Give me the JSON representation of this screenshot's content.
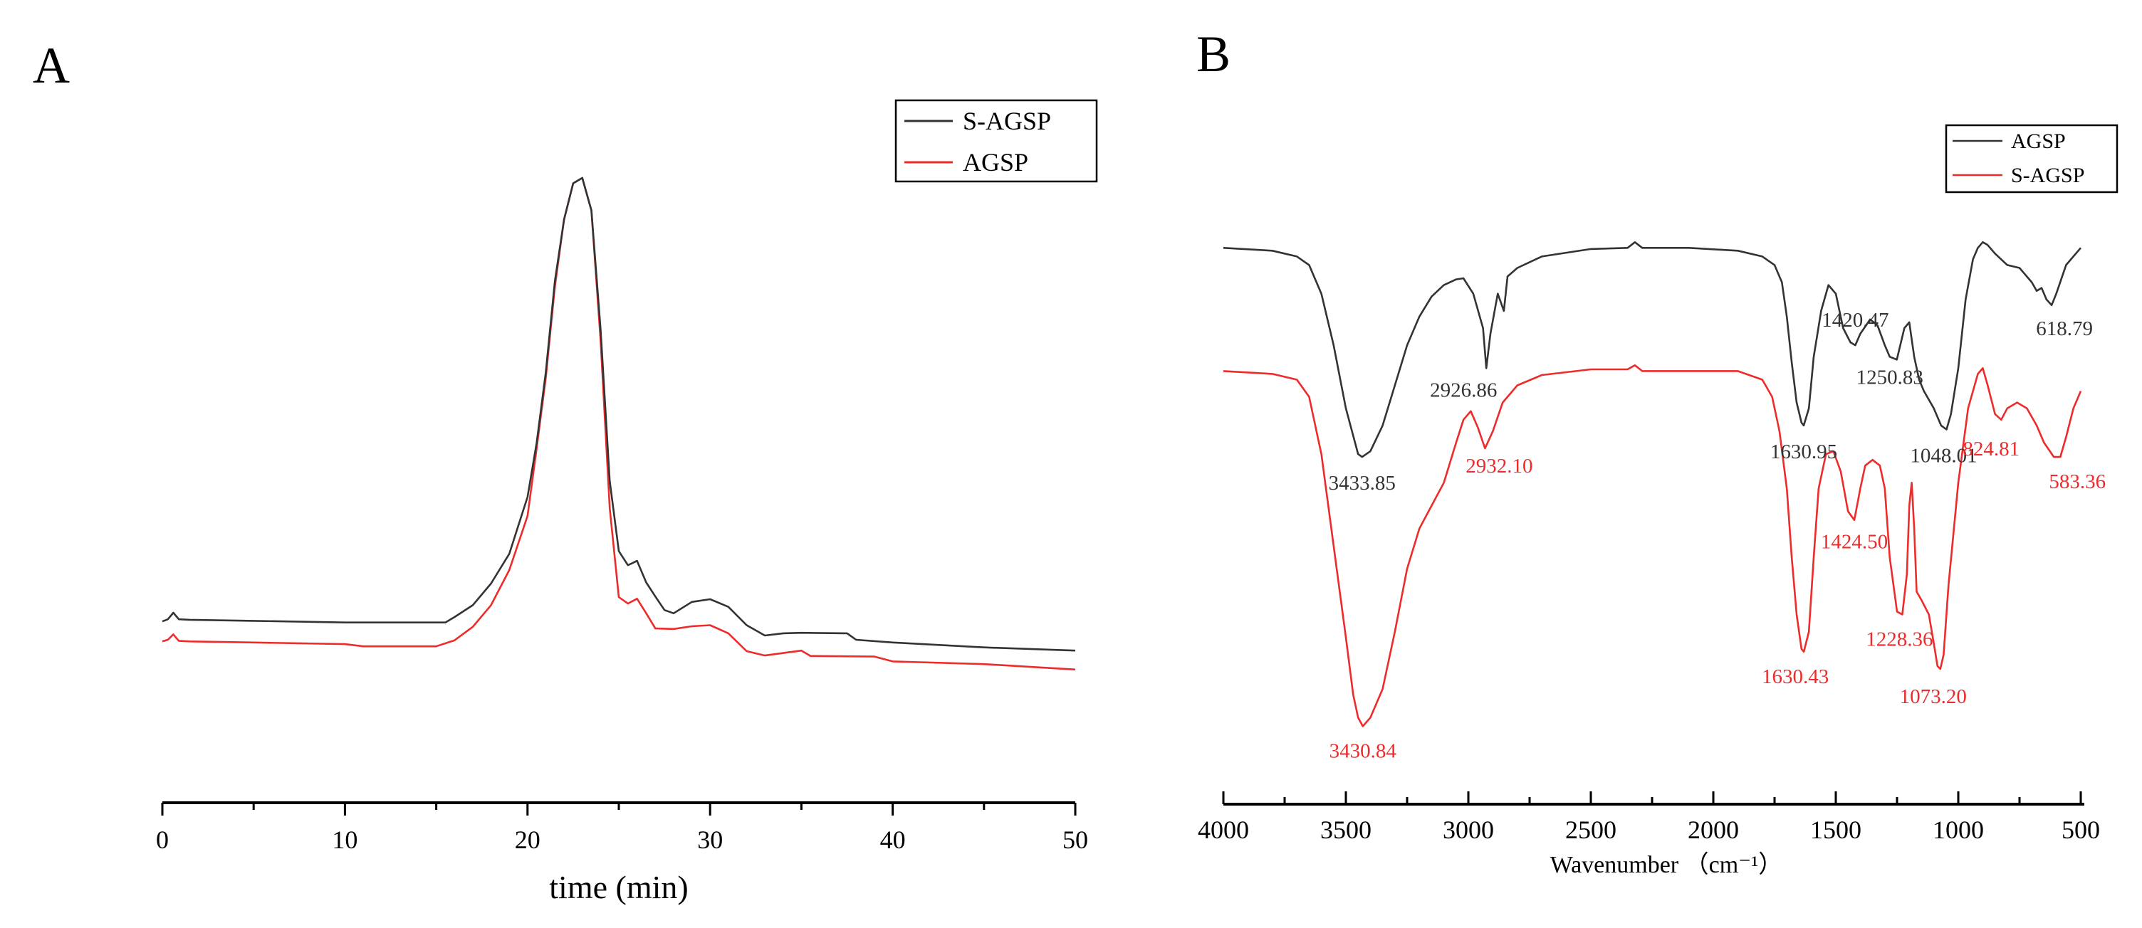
{
  "colors": {
    "black_series": "#333333",
    "red_series": "#ee2b2b",
    "axis": "#000000"
  },
  "chart_data": [
    {
      "panel": "A",
      "type": "line",
      "title": "",
      "xlabel": "time (min)",
      "ylabel": "",
      "xlim": [
        0,
        50
      ],
      "xticks": [
        0,
        10,
        20,
        30,
        40,
        50
      ],
      "xtick_labels": [
        "0",
        "10",
        "20",
        "30",
        "40",
        "50"
      ],
      "ylim": [
        0,
        100
      ],
      "legend": {
        "position": "top-right",
        "entries": [
          "S-AGSP",
          "AGSP"
        ]
      },
      "series": [
        {
          "name": "S-AGSP",
          "color": "#333333",
          "x": [
            0,
            0.3,
            0.6,
            0.9,
            1.5,
            5,
            10,
            15.5,
            16,
            17,
            18,
            19,
            20,
            20.5,
            21,
            21.5,
            22,
            22.5,
            23,
            23.5,
            24,
            24.5,
            25,
            25.5,
            26,
            26.5,
            27,
            27.5,
            28,
            29,
            30,
            31,
            32,
            33,
            34,
            35,
            37.5,
            38,
            40,
            45,
            50
          ],
          "y": [
            18,
            18.4,
            19.6,
            18.4,
            18.3,
            18.1,
            17.8,
            17.8,
            18.8,
            21,
            25,
            30.5,
            41,
            51,
            64,
            81,
            92.3,
            99,
            100,
            94,
            72,
            44,
            31,
            28.4,
            29.2,
            25.2,
            22.6,
            20.1,
            19.5,
            21.6,
            22.1,
            20.7,
            17.3,
            15.4,
            15.8,
            15.9,
            15.8,
            14.6,
            14.1,
            13.2,
            12.6
          ]
        },
        {
          "name": "AGSP",
          "color": "#ee2b2b",
          "x": [
            0,
            0.3,
            0.6,
            0.9,
            1.5,
            5,
            10,
            11,
            15,
            16,
            17,
            18,
            19,
            20,
            20.5,
            21,
            21.5,
            22,
            22.5,
            23,
            23.5,
            24,
            24.5,
            25,
            25.5,
            26,
            26.5,
            27,
            28,
            29,
            30,
            31,
            32,
            33,
            35,
            35.5,
            39,
            40,
            45,
            50
          ],
          "y": [
            14.3,
            14.6,
            15.6,
            14.4,
            14.3,
            14.1,
            13.8,
            13.4,
            13.4,
            14.5,
            17,
            21,
            27.5,
            37.5,
            50,
            63,
            80,
            92.3,
            99,
            100,
            94,
            70,
            39,
            22.5,
            21.3,
            22.2,
            19.5,
            16.7,
            16.6,
            17.1,
            17.3,
            15.8,
            12.5,
            11.7,
            12.6,
            11.6,
            11.5,
            10.6,
            10.1,
            9.1
          ]
        }
      ]
    },
    {
      "panel": "B",
      "type": "line",
      "title": "",
      "xlabel": "Wavenumber （cm⁻¹）",
      "ylabel": "",
      "xlim": [
        4000,
        500
      ],
      "xticks": [
        4000,
        3500,
        3000,
        2500,
        2000,
        1500,
        1000,
        500
      ],
      "xtick_labels": [
        "4000",
        "3500",
        "3000",
        "2500",
        "2000",
        "1500",
        "1000",
        "500"
      ],
      "ylim": [
        0,
        100
      ],
      "legend": {
        "position": "top-right",
        "entries": [
          "AGSP",
          "S-AGSP"
        ]
      },
      "series": [
        {
          "name": "AGSP",
          "color": "#333333",
          "x": [
            4000,
            3800,
            3700,
            3650,
            3600,
            3550,
            3500,
            3450,
            3433.85,
            3400,
            3350,
            3300,
            3250,
            3200,
            3150,
            3100,
            3050,
            3020,
            2980,
            2940,
            2926.86,
            2910,
            2880,
            2855,
            2840,
            2800,
            2700,
            2500,
            2350,
            2320,
            2290,
            2100,
            1900,
            1800,
            1750,
            1720,
            1700,
            1680,
            1660,
            1640,
            1630.95,
            1610,
            1590,
            1560,
            1530,
            1500,
            1470,
            1440,
            1420.47,
            1400,
            1360,
            1330,
            1300,
            1280,
            1250.83,
            1220,
            1200,
            1180,
            1160,
            1140,
            1100,
            1070,
            1048.01,
            1030,
            1000,
            970,
            940,
            920,
            900,
            880,
            850,
            800,
            750,
            700,
            680,
            660,
            640,
            618.79,
            600,
            560,
            520,
            500
          ],
          "y": [
            94,
            93.5,
            92.5,
            91,
            86,
            77,
            66,
            58,
            57.5,
            58.5,
            63,
            70,
            77,
            82,
            85.5,
            87.5,
            88.5,
            88.7,
            86,
            80,
            73,
            79,
            86,
            83,
            89,
            90.5,
            92.5,
            93.8,
            94,
            95,
            94,
            94,
            93.5,
            92.5,
            91,
            88,
            82,
            74,
            67,
            63.5,
            63,
            66,
            75,
            83,
            87.5,
            86,
            80,
            77.5,
            77,
            79,
            81.5,
            80.5,
            77,
            75,
            74.5,
            80,
            81,
            75,
            71,
            69,
            66,
            63,
            62.3,
            65,
            73,
            85,
            92,
            94,
            95,
            94.5,
            93,
            91,
            90.5,
            88,
            86.5,
            87,
            85,
            84,
            86,
            91,
            93,
            94
          ]
        },
        {
          "name": "S-AGSP",
          "color": "#ee2b2b",
          "x": [
            4000,
            3800,
            3700,
            3650,
            3600,
            3550,
            3500,
            3470,
            3450,
            3430.84,
            3400,
            3350,
            3300,
            3250,
            3200,
            3150,
            3100,
            3050,
            3020,
            2990,
            2960,
            2932.1,
            2900,
            2860,
            2800,
            2700,
            2500,
            2350,
            2320,
            2290,
            2100,
            1900,
            1800,
            1760,
            1730,
            1700,
            1680,
            1660,
            1640,
            1630.43,
            1610,
            1590,
            1570,
            1540,
            1510,
            1480,
            1450,
            1424.5,
            1400,
            1380,
            1350,
            1320,
            1300,
            1280,
            1250,
            1228.36,
            1210,
            1200,
            1190,
            1180,
            1170,
            1150,
            1120,
            1100,
            1085,
            1073.2,
            1060,
            1040,
            1000,
            960,
            920,
            900,
            880,
            850,
            824.81,
            800,
            760,
            720,
            680,
            650,
            610,
            583.36,
            560,
            530,
            500
          ],
          "y": [
            72.5,
            72,
            71,
            68,
            58,
            42,
            26,
            16,
            12,
            10.5,
            12,
            17,
            27,
            38,
            45,
            49,
            53,
            60,
            64,
            65.5,
            62.5,
            59,
            62,
            67,
            70,
            71.8,
            72.8,
            72.8,
            73.5,
            72.5,
            72.5,
            72.5,
            71,
            68,
            62,
            52,
            40,
            30,
            24,
            23.5,
            27,
            40,
            52,
            58,
            58.5,
            55,
            48,
            46.5,
            52,
            56,
            57,
            56,
            52,
            40,
            30.5,
            30,
            37,
            49,
            53,
            45,
            34,
            32.5,
            30,
            25,
            21,
            20.5,
            23,
            35,
            53,
            66,
            72,
            73,
            70,
            65,
            64,
            66,
            67,
            66,
            63,
            60,
            57.5,
            57.5,
            61,
            66,
            69
          ]
        }
      ],
      "annotations": [
        {
          "text": "2926.86",
          "series": "AGSP"
        },
        {
          "text": "3433.85",
          "series": "AGSP"
        },
        {
          "text": "1630.95",
          "series": "AGSP"
        },
        {
          "text": "1420.47",
          "series": "AGSP"
        },
        {
          "text": "1250.83",
          "series": "AGSP"
        },
        {
          "text": "1048.01",
          "series": "AGSP"
        },
        {
          "text": "618.79",
          "series": "AGSP"
        },
        {
          "text": "2932.10",
          "series": "S-AGSP"
        },
        {
          "text": "3430.84",
          "series": "S-AGSP"
        },
        {
          "text": "1630.43",
          "series": "S-AGSP"
        },
        {
          "text": "1424.50",
          "series": "S-AGSP"
        },
        {
          "text": "1228.36",
          "series": "S-AGSP"
        },
        {
          "text": "1073.20",
          "series": "S-AGSP"
        },
        {
          "text": "824.81",
          "series": "S-AGSP"
        },
        {
          "text": "583.36",
          "series": "S-AGSP"
        }
      ]
    }
  ]
}
